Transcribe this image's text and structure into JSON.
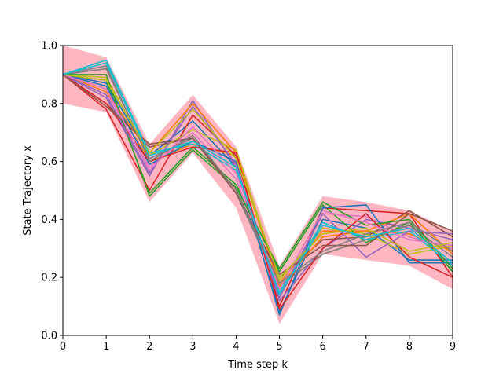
{
  "chart_data": {
    "type": "line",
    "title": "",
    "xlabel": "Time step k",
    "ylabel": "State Trajectory x",
    "xlim": [
      0,
      9
    ],
    "ylim": [
      0,
      1
    ],
    "x_ticks": [
      "0",
      "1",
      "2",
      "3",
      "4",
      "5",
      "6",
      "7",
      "8",
      "9"
    ],
    "y_ticks": [
      "0.0",
      "0.2",
      "0.4",
      "0.6",
      "0.8",
      "1.0"
    ],
    "grid": false,
    "legend": "none",
    "band_color": "#ffb6c1",
    "band": {
      "x": [
        0,
        1,
        2,
        3,
        4,
        5,
        6,
        7,
        8,
        9
      ],
      "upper": [
        1.0,
        0.96,
        0.66,
        0.83,
        0.65,
        0.24,
        0.48,
        0.46,
        0.43,
        0.36
      ],
      "lower": [
        0.8,
        0.77,
        0.46,
        0.63,
        0.44,
        0.04,
        0.28,
        0.26,
        0.24,
        0.16
      ]
    },
    "x": [
      0,
      1,
      2,
      3,
      4,
      5,
      6,
      7,
      8,
      9
    ],
    "series": [
      {
        "color": "#1f77b4",
        "values": [
          0.9,
          0.87,
          0.62,
          0.74,
          0.58,
          0.08,
          0.4,
          0.37,
          0.26,
          0.26
        ]
      },
      {
        "color": "#ff7f0e",
        "values": [
          0.9,
          0.85,
          0.6,
          0.66,
          0.62,
          0.18,
          0.36,
          0.36,
          0.35,
          0.29
        ]
      },
      {
        "color": "#2ca02c",
        "values": [
          0.9,
          0.88,
          0.49,
          0.65,
          0.52,
          0.22,
          0.45,
          0.32,
          0.39,
          0.22
        ]
      },
      {
        "color": "#d62728",
        "values": [
          0.9,
          0.78,
          0.5,
          0.76,
          0.62,
          0.1,
          0.44,
          0.43,
          0.42,
          0.2
        ]
      },
      {
        "color": "#9467bd",
        "values": [
          0.9,
          0.82,
          0.55,
          0.81,
          0.58,
          0.12,
          0.3,
          0.4,
          0.37,
          0.33
        ]
      },
      {
        "color": "#8c564b",
        "values": [
          0.9,
          0.8,
          0.65,
          0.68,
          0.5,
          0.2,
          0.33,
          0.34,
          0.43,
          0.34
        ]
      },
      {
        "color": "#e377c2",
        "values": [
          0.9,
          0.84,
          0.58,
          0.7,
          0.54,
          0.14,
          0.42,
          0.41,
          0.34,
          0.3
        ]
      },
      {
        "color": "#7f7f7f",
        "values": [
          0.9,
          0.92,
          0.61,
          0.68,
          0.49,
          0.17,
          0.28,
          0.33,
          0.38,
          0.27
        ]
      },
      {
        "color": "#bcbd22",
        "values": [
          0.9,
          0.89,
          0.62,
          0.71,
          0.64,
          0.19,
          0.37,
          0.35,
          0.28,
          0.31
        ]
      },
      {
        "color": "#17becf",
        "values": [
          0.9,
          0.95,
          0.63,
          0.66,
          0.57,
          0.15,
          0.39,
          0.33,
          0.36,
          0.24
        ]
      },
      {
        "color": "#1f77b4",
        "values": [
          0.9,
          0.86,
          0.59,
          0.67,
          0.6,
          0.07,
          0.44,
          0.45,
          0.25,
          0.25
        ]
      },
      {
        "color": "#ff7f0e",
        "values": [
          0.9,
          0.84,
          0.63,
          0.8,
          0.63,
          0.17,
          0.34,
          0.36,
          0.42,
          0.28
        ]
      },
      {
        "color": "#2ca02c",
        "values": [
          0.9,
          0.9,
          0.48,
          0.64,
          0.51,
          0.23,
          0.46,
          0.38,
          0.4,
          0.23
        ]
      },
      {
        "color": "#d62728",
        "values": [
          0.9,
          0.8,
          0.6,
          0.65,
          0.63,
          0.09,
          0.3,
          0.42,
          0.27,
          0.2
        ]
      },
      {
        "color": "#9467bd",
        "values": [
          0.9,
          0.83,
          0.56,
          0.79,
          0.59,
          0.13,
          0.42,
          0.27,
          0.36,
          0.35
        ]
      },
      {
        "color": "#8c564b",
        "values": [
          0.9,
          0.79,
          0.66,
          0.68,
          0.49,
          0.21,
          0.31,
          0.31,
          0.42,
          0.36
        ]
      },
      {
        "color": "#e377c2",
        "values": [
          0.9,
          0.85,
          0.57,
          0.72,
          0.56,
          0.16,
          0.43,
          0.39,
          0.33,
          0.31
        ]
      },
      {
        "color": "#7f7f7f",
        "values": [
          0.9,
          0.93,
          0.6,
          0.69,
          0.5,
          0.18,
          0.29,
          0.35,
          0.39,
          0.29
        ]
      },
      {
        "color": "#bcbd22",
        "values": [
          0.9,
          0.88,
          0.63,
          0.78,
          0.61,
          0.2,
          0.35,
          0.37,
          0.29,
          0.32
        ]
      },
      {
        "color": "#17becf",
        "values": [
          0.9,
          0.94,
          0.62,
          0.67,
          0.58,
          0.14,
          0.38,
          0.34,
          0.37,
          0.25
        ]
      }
    ]
  }
}
